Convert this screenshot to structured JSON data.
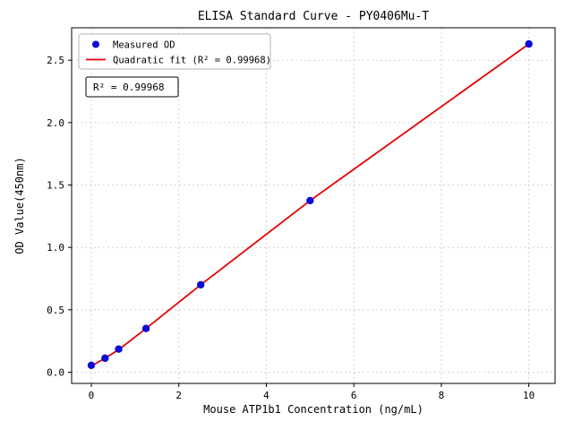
{
  "chart_data": {
    "type": "scatter",
    "title": "ELISA Standard Curve - PY0406Mu-T",
    "xlabel": "Mouse ATP1b1 Concentration (ng/mL)",
    "ylabel": "OD Value(450nm)",
    "xlim": [
      -0.45,
      10.6
    ],
    "ylim": [
      -0.09,
      2.76
    ],
    "xticks": [
      0,
      2,
      4,
      6,
      8,
      10
    ],
    "yticks": [
      0.0,
      0.5,
      1.0,
      1.5,
      2.0,
      2.5
    ],
    "grid": true,
    "legend_position": "upper-left",
    "annotation": "R² = 0.99968",
    "colors": {
      "point": "#0b0bd6",
      "line": "#e60000",
      "grid": "#c9c9c9",
      "axis": "#000000",
      "legend_border": "#b3b3b3"
    },
    "legend": {
      "entries": [
        {
          "label": "Measured OD",
          "marker": "point",
          "color": "#0b0bd6"
        },
        {
          "label": "Quadratic fit (R² = 0.99968)",
          "marker": "line",
          "color": "#e60000"
        }
      ]
    },
    "series": [
      {
        "name": "Quadratic fit",
        "type": "line",
        "color": "#e60000",
        "x": [
          0,
          0.313,
          0.625,
          1.25,
          2.5,
          5,
          10
        ],
        "y": [
          0.05,
          0.112,
          0.18,
          0.35,
          0.7,
          1.375,
          2.63
        ]
      },
      {
        "name": "Measured OD",
        "type": "scatter",
        "color": "#0b0bd6",
        "x": [
          0,
          0.313,
          0.625,
          1.25,
          2.5,
          5,
          10
        ],
        "y": [
          0.055,
          0.112,
          0.185,
          0.35,
          0.7,
          1.375,
          2.63
        ]
      }
    ]
  }
}
